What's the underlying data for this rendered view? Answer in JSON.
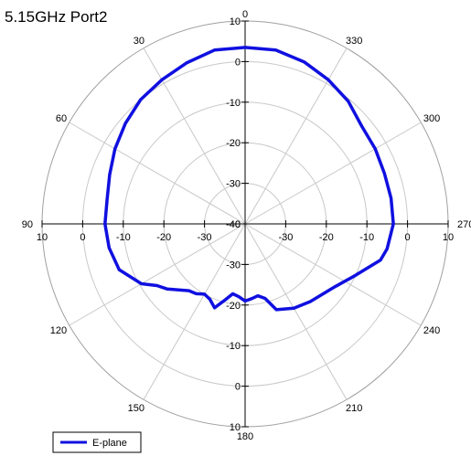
{
  "chart_data": {
    "type": "polar-line",
    "title": "5.15GHz Port2",
    "r_axis": {
      "min": -40,
      "max": 10,
      "ticks": [
        10,
        0,
        -10,
        -20,
        -30,
        -40
      ]
    },
    "angle_axis": {
      "direction": "counterclockwise",
      "zero_at": "top",
      "labels": [
        "0",
        "30",
        "60",
        "90",
        "120",
        "150",
        "180",
        "210",
        "240",
        "270",
        "300",
        "330"
      ]
    },
    "grid": true,
    "legend_position": "bottom-left",
    "series": [
      {
        "name": "E-plane",
        "color": "#1010e0",
        "points": [
          [
            0,
            3.5
          ],
          [
            10,
            3.5
          ],
          [
            20,
            2.2
          ],
          [
            30,
            1.0
          ],
          [
            40,
            0.0
          ],
          [
            50,
            -1.5
          ],
          [
            60,
            -3.0
          ],
          [
            70,
            -4.5
          ],
          [
            80,
            -5.5
          ],
          [
            90,
            -5.5
          ],
          [
            100,
            -6.0
          ],
          [
            110,
            -7.0
          ],
          [
            120,
            -10.5
          ],
          [
            125,
            -13.5
          ],
          [
            130,
            -15.0
          ],
          [
            140,
            -18.5
          ],
          [
            145,
            -19.0
          ],
          [
            150,
            -20.0
          ],
          [
            155,
            -19.5
          ],
          [
            160,
            -18.0
          ],
          [
            165,
            -20.5
          ],
          [
            170,
            -22.5
          ],
          [
            175,
            -22.0
          ],
          [
            180,
            -21.0
          ],
          [
            185,
            -21.5
          ],
          [
            190,
            -22.0
          ],
          [
            195,
            -21.0
          ],
          [
            200,
            -17.5
          ],
          [
            210,
            -16.0
          ],
          [
            220,
            -15.0
          ],
          [
            235,
            -13.0
          ],
          [
            245,
            -10.0
          ],
          [
            255,
            -5.5
          ],
          [
            260,
            -4.5
          ],
          [
            270,
            -3.5
          ],
          [
            280,
            -3.5
          ],
          [
            290,
            -3.5
          ],
          [
            300,
            -3.0
          ],
          [
            310,
            -2.5
          ],
          [
            320,
            -0.5
          ],
          [
            330,
            1.0
          ],
          [
            340,
            2.5
          ],
          [
            350,
            3.5
          ],
          [
            360,
            3.5
          ]
        ]
      }
    ]
  }
}
